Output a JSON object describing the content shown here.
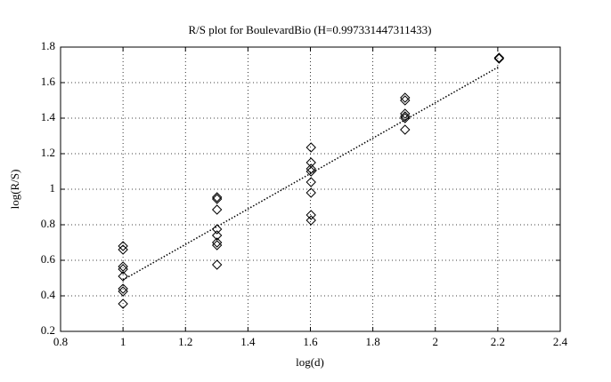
{
  "chart_data": {
    "type": "scatter",
    "title": "R/S plot for BoulevardBio (H=0.997331447311433)",
    "xlabel": "log(d)",
    "ylabel": "log(R/S)",
    "xlim": [
      0.8,
      2.4
    ],
    "xticks": [
      0.8,
      1,
      1.2,
      1.4,
      1.6,
      1.8,
      2,
      2.2,
      2.4
    ],
    "ylim": [
      0.2,
      1.8
    ],
    "yticks": [
      0.2,
      0.4,
      0.6,
      0.8,
      1,
      1.2,
      1.4,
      1.6,
      1.8
    ],
    "grid": true,
    "series": [
      {
        "type": "scatter",
        "marker": "diamond",
        "color": "#000000",
        "x": [
          1,
          1,
          1,
          1,
          1,
          1,
          1,
          1,
          1.30103,
          1.30103,
          1.30103,
          1.30103,
          1.30103,
          1.30103,
          1.30103,
          1.30103,
          1.60206,
          1.60206,
          1.60206,
          1.60206,
          1.60206,
          1.60206,
          1.60206,
          1.60206,
          1.90309,
          1.90309,
          1.90309,
          1.90309,
          1.90309,
          1.90309,
          2.20412,
          2.20412
        ],
        "values": [
          0.68,
          0.66,
          0.565,
          0.55,
          0.51,
          0.44,
          0.425,
          0.355,
          0.955,
          0.945,
          0.885,
          0.775,
          0.74,
          0.7,
          0.685,
          0.575,
          1.235,
          1.15,
          1.115,
          1.1,
          1.04,
          0.98,
          0.855,
          0.825,
          1.515,
          1.5,
          1.425,
          1.41,
          1.4,
          1.335,
          1.74,
          1.735
        ]
      },
      {
        "type": "line",
        "style": "dotted",
        "color": "#000000",
        "x": [
          1,
          2.20412
        ],
        "values": [
          0.49,
          1.69
        ]
      }
    ]
  }
}
